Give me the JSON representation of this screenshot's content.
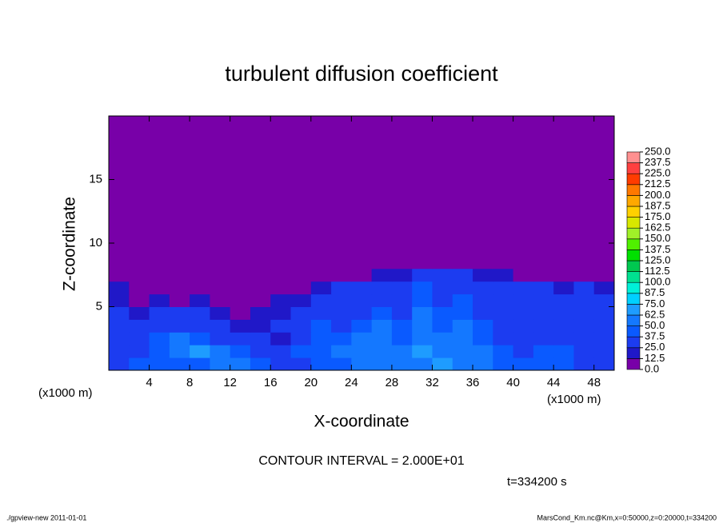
{
  "chart_data": {
    "type": "heatmap",
    "title": "turbulent diffusion coefficient",
    "x_label": "X-coordinate",
    "y_label": "Z-coordinate",
    "x_unit": "(x1000 m)",
    "y_unit": "(x1000 m)",
    "contour_interval": "CONTOUR INTERVAL = 2.000E+01",
    "time_label": "t=334200 s",
    "footer_left": "./gpview-new  2011-01-01",
    "footer_right": "MarsCond_Km.nc@Km,x=0:50000,z=0:20000,t=334200",
    "xlim": [
      0,
      50
    ],
    "ylim": [
      0,
      20
    ],
    "xticks": [
      4,
      8,
      12,
      16,
      20,
      24,
      28,
      32,
      36,
      40,
      44,
      48
    ],
    "yticks": [
      5,
      10,
      15
    ],
    "x": [
      0,
      2,
      4,
      6,
      8,
      10,
      12,
      14,
      16,
      18,
      20,
      22,
      24,
      26,
      28,
      30,
      32,
      34,
      36,
      38,
      40,
      42,
      44,
      46,
      48,
      50
    ],
    "y": [
      0,
      1,
      2,
      3,
      4,
      5,
      6,
      7,
      8,
      20
    ],
    "values": [
      [
        35,
        40,
        45,
        40,
        45,
        55,
        50,
        40,
        30,
        35,
        40,
        45,
        55,
        50,
        60,
        55,
        65,
        50,
        60,
        45,
        40,
        45,
        40,
        35,
        30
      ],
      [
        30,
        35,
        40,
        60,
        70,
        55,
        45,
        35,
        30,
        40,
        45,
        50,
        55,
        60,
        50,
        65,
        55,
        60,
        50,
        40,
        35,
        40,
        45,
        35,
        30
      ],
      [
        35,
        30,
        45,
        50,
        40,
        35,
        30,
        25,
        20,
        30,
        40,
        45,
        50,
        55,
        45,
        60,
        50,
        55,
        45,
        35,
        30,
        25,
        30,
        35,
        25
      ],
      [
        30,
        25,
        35,
        30,
        25,
        30,
        20,
        15,
        25,
        30,
        45,
        35,
        40,
        50,
        40,
        55,
        45,
        50,
        40,
        30,
        25,
        30,
        25,
        30,
        30
      ],
      [
        25,
        20,
        30,
        25,
        30,
        20,
        10,
        15,
        20,
        30,
        35,
        30,
        35,
        45,
        35,
        50,
        40,
        45,
        35,
        30,
        25,
        25,
        30,
        25,
        30
      ],
      [
        20,
        10,
        15,
        10,
        15,
        10,
        5,
        10,
        15,
        20,
        30,
        30,
        30,
        35,
        30,
        45,
        35,
        40,
        30,
        30,
        25,
        25,
        25,
        30,
        25
      ],
      [
        15,
        5,
        5,
        5,
        5,
        5,
        5,
        5,
        5,
        10,
        20,
        25,
        25,
        30,
        25,
        40,
        30,
        35,
        30,
        25,
        25,
        25,
        20,
        25,
        20
      ],
      [
        0,
        0,
        0,
        0,
        0,
        0,
        0,
        0,
        0,
        0,
        0,
        5,
        10,
        20,
        20,
        30,
        25,
        30,
        20,
        15,
        10,
        5,
        5,
        0,
        0
      ],
      [
        0,
        0,
        0,
        0,
        0,
        0,
        0,
        0,
        0,
        0,
        0,
        0,
        0,
        0,
        0,
        0,
        0,
        0,
        0,
        0,
        0,
        0,
        0,
        0,
        0
      ]
    ],
    "colorbar": {
      "ticks": [
        {
          "value": 0,
          "label": "0.0"
        },
        12.5,
        {
          "value": 25,
          "label": "25.0"
        },
        37.5,
        {
          "value": 50,
          "label": "50.0"
        },
        62.5,
        {
          "value": 75,
          "label": "75.0"
        },
        87.5,
        {
          "value": 100,
          "label": "100.0"
        },
        112.5,
        {
          "value": 125,
          "label": "125.0"
        },
        137.5,
        {
          "value": 150,
          "label": "150.0"
        },
        162.5,
        {
          "value": 175,
          "label": "175.0"
        },
        187.5,
        {
          "value": 200,
          "label": "200.0"
        },
        212.5,
        {
          "value": 225,
          "label": "225.0"
        },
        237.5,
        {
          "value": 250,
          "label": "250.0"
        }
      ],
      "colors": [
        "#7800a8",
        "#2018c8",
        "#1c3cf0",
        "#0a5aff",
        "#1478ff",
        "#1e9cff",
        "#00d0ff",
        "#00f0d8",
        "#00e090",
        "#00c850",
        "#00e000",
        "#50f000",
        "#a0f028",
        "#d8e800",
        "#ffd000",
        "#ffa800",
        "#ff7800",
        "#ff3c00",
        "#ff4040",
        "#ff9090"
      ]
    }
  }
}
